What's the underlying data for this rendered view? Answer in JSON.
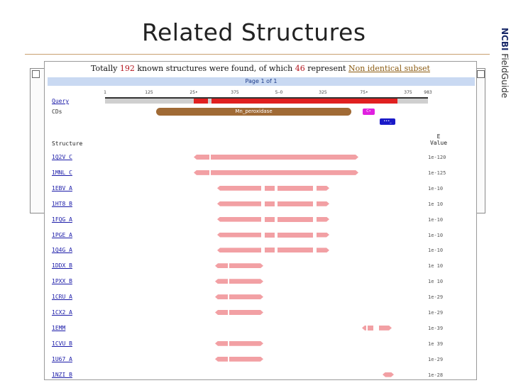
{
  "slide": {
    "title": "Related Structures",
    "brand_bold": "NCBI",
    "brand_rest": " FieldGuide"
  },
  "summary": {
    "pre": "Totally ",
    "total": "192",
    "mid": " known structures were found, of which ",
    "nonident": "46",
    "post": " represent ",
    "link": "Non identical subset"
  },
  "page_label": "Page 1 of 1",
  "scale_ticks": [
    "1",
    "125",
    "25•",
    "375",
    "5–0",
    "325",
    "75•",
    "375",
    "983"
  ],
  "labels": {
    "query": "Query",
    "cds": "CDs",
    "cd_main": "Mn_peroxidase",
    "cd_small1": "C•",
    "cd_small2": "•••_",
    "structure_header": "Structure",
    "evalue_header_line1": "E",
    "evalue_header_line2": "Value"
  },
  "colors": {
    "query_gray": "#cfcfcf",
    "query_red": "#e02020",
    "cd_main": "#a06a35",
    "cd_small1": "#e020e0",
    "cd_small2": "#1a1ac8",
    "hit": "#f2a0a4",
    "total_num": "#b3121b"
  },
  "structures": [
    {
      "id": "1Q2V C",
      "evalue": "1e-120"
    },
    {
      "id": "1MNL C",
      "evalue": "1e-125"
    },
    {
      "id": "1EBV A",
      "evalue": "1e-10"
    },
    {
      "id": "1HT8 B",
      "evalue": "1e 10"
    },
    {
      "id": "1FQG A",
      "evalue": "1e-10"
    },
    {
      "id": "1PGE A",
      "evalue": "1e-10"
    },
    {
      "id": "1Q4G A",
      "evalue": "1e-10"
    },
    {
      "id": "1DDX B",
      "evalue": "1e 10"
    },
    {
      "id": "1PXX B",
      "evalue": "1e 10"
    },
    {
      "id": "1CRU A",
      "evalue": "1e-29"
    },
    {
      "id": "1CX2 A",
      "evalue": "1e-29"
    },
    {
      "id": "1EMM",
      "evalue": "1e-39"
    },
    {
      "id": "1CVU B",
      "evalue": "1e 39"
    },
    {
      "id": "1U67 A",
      "evalue": "1e-29"
    },
    {
      "id": "1NZI B",
      "evalue": "1e-28"
    }
  ]
}
